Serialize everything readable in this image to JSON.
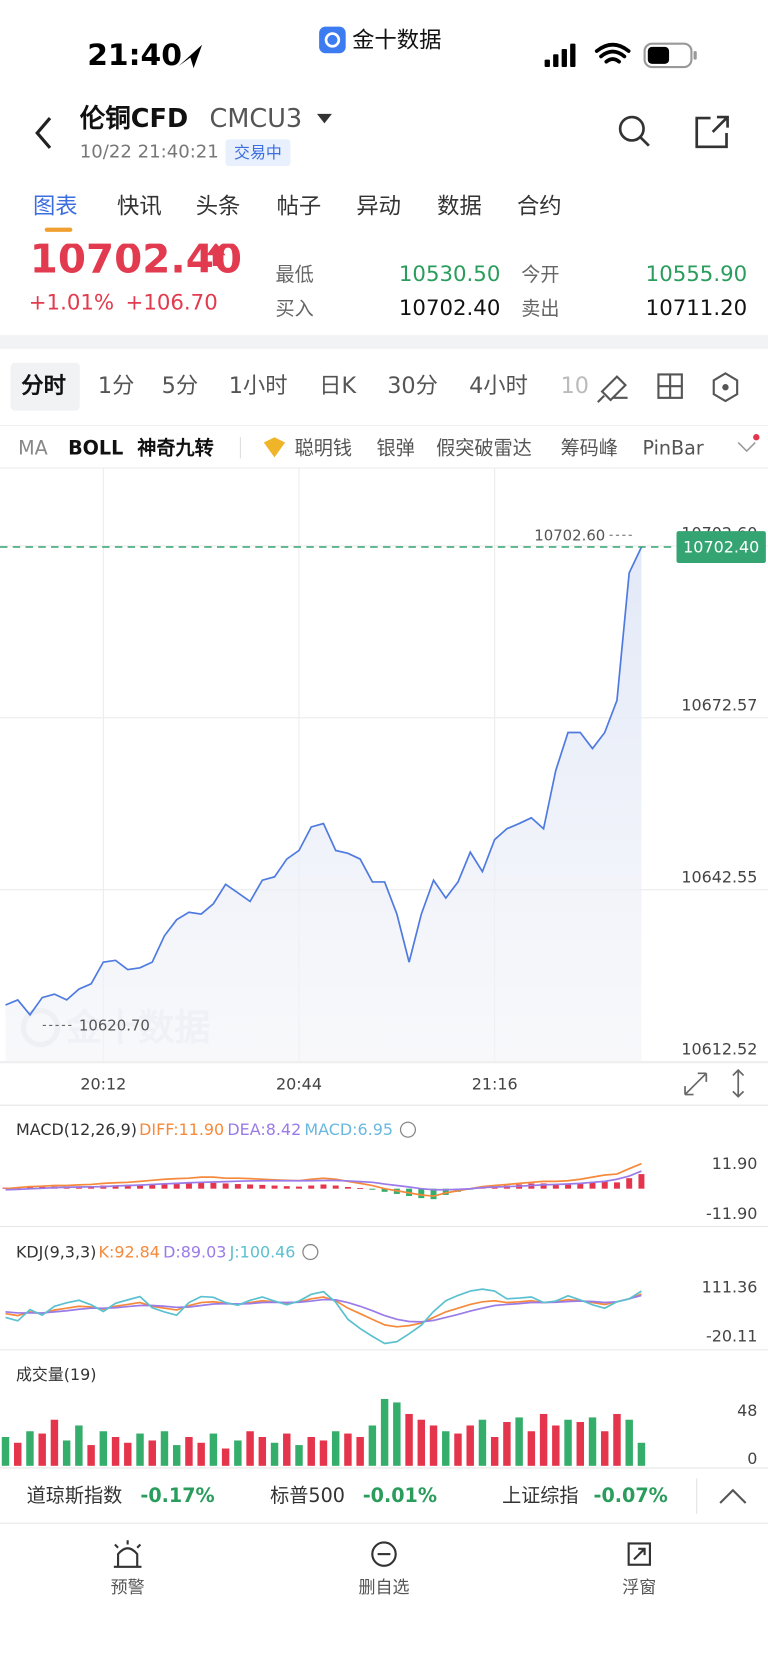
{
  "status": {
    "time": "21:40",
    "app": "金十数据"
  },
  "header": {
    "name": "伦铜CFD",
    "code": "CMCU3",
    "datetime": "10/22 21:40:21",
    "state": "交易中"
  },
  "tabs": [
    "图表",
    "快讯",
    "头条",
    "帖子",
    "异动",
    "数据",
    "合约"
  ],
  "quote": {
    "price": "10702.40",
    "change_pct": "+1.01%",
    "change": "+106.70",
    "rows": [
      [
        "最低",
        "10530.50",
        "今开",
        "10555.90"
      ],
      [
        "买入",
        "10702.40",
        "卖出",
        "10711.20"
      ]
    ]
  },
  "periods": [
    "分时",
    "1分",
    "5分",
    "1小时",
    "日K",
    "30分",
    "4小时",
    "10"
  ],
  "indicators": [
    "MA",
    "BOLL",
    "神奇九转",
    "聪明钱",
    "银弹",
    "假突破雷达",
    "筹码峰",
    "PinBar"
  ],
  "chart_data": [
    {
      "type": "line",
      "color": "#4f7be0",
      "grid": true,
      "watermark": "金十数据",
      "xlim": [
        1195.1,
        1320.7
      ],
      "ylim": [
        10612.52,
        10716.2
      ],
      "xticks": [
        {
          "value": 1212,
          "label": "20:12"
        },
        {
          "value": 1244,
          "label": "20:44"
        },
        {
          "value": 1276,
          "label": "21:16"
        }
      ],
      "yticks": [
        10612.52,
        10642.55,
        10672.57,
        {
          "value": 10702.6,
          "label": "10702.60"
        }
      ],
      "x": [
        1196,
        1198,
        1200,
        1202,
        1204,
        1206,
        1208,
        1210,
        1212,
        1214,
        1216,
        1218,
        1220,
        1222,
        1224,
        1226,
        1228,
        1230,
        1232,
        1234,
        1236,
        1238,
        1240,
        1242,
        1244,
        1246,
        1248,
        1250,
        1252,
        1254,
        1256,
        1258,
        1260,
        1262,
        1264,
        1266,
        1268,
        1270,
        1272,
        1274,
        1276,
        1278,
        1280,
        1282,
        1284,
        1286,
        1288,
        1290,
        1292,
        1294,
        1296,
        1298,
        1300
      ],
      "values": [
        10622.4,
        10623.3,
        10620.7,
        10623.7,
        10624.3,
        10623.3,
        10625.2,
        10626.1,
        10629.9,
        10630.2,
        10628.6,
        10628.9,
        10629.9,
        10634.5,
        10637.3,
        10638.6,
        10638.3,
        10640.1,
        10643.5,
        10642.0,
        10640.5,
        10644.2,
        10644.8,
        10647.9,
        10649.4,
        10653.5,
        10654.1,
        10649.4,
        10648.9,
        10647.9,
        10643.9,
        10643.9,
        10638.3,
        10629.9,
        10638.3,
        10644.2,
        10641.1,
        10643.9,
        10649.1,
        10645.7,
        10651.3,
        10653.2,
        10654.1,
        10655.1,
        10653.2,
        10663.4,
        10670.0,
        10670.0,
        10667.2,
        10670.0,
        10675.6,
        10697.9,
        10702.4
      ],
      "current": {
        "value": 10702.4,
        "label": "10702.40",
        "color": "#34a472"
      },
      "max": {
        "value": 10702.6,
        "label": "10702.60"
      },
      "min": {
        "value": 10620.7,
        "label": "10620.70"
      }
    },
    {
      "type": "combo",
      "title": "MACD(12,26,9)",
      "grid": false,
      "xlim": [
        1195.1,
        1320.7
      ],
      "ylim": [
        -16.5,
        19
      ],
      "yticks": [
        {
          "value": 11.9,
          "label": "11.90"
        },
        {
          "value": -11.9,
          "label": "-11.90"
        }
      ],
      "x": [
        1196,
        1198,
        1200,
        1202,
        1204,
        1206,
        1208,
        1210,
        1212,
        1214,
        1216,
        1218,
        1220,
        1222,
        1224,
        1226,
        1228,
        1230,
        1232,
        1234,
        1236,
        1238,
        1240,
        1242,
        1244,
        1246,
        1248,
        1250,
        1252,
        1254,
        1256,
        1258,
        1260,
        1262,
        1264,
        1266,
        1268,
        1270,
        1272,
        1274,
        1276,
        1278,
        1280,
        1282,
        1284,
        1286,
        1288,
        1290,
        1292,
        1294,
        1296,
        1298,
        1300
      ],
      "series": [
        {
          "name": "DIFF:11.90",
          "color": "#f58a3c",
          "values": [
            0,
            0.5,
            1,
            1.2,
            1.5,
            1.5,
            1.8,
            2,
            2.5,
            2.8,
            3,
            3.5,
            4,
            4.5,
            4.8,
            5,
            5.5,
            5.5,
            5,
            5,
            4.8,
            4.5,
            4.2,
            4,
            3.8,
            4.5,
            5,
            4.5,
            3.5,
            2.5,
            1.5,
            0,
            -1,
            -2,
            -3,
            -3.5,
            -2,
            -1,
            0,
            1,
            1.5,
            2,
            2.5,
            3,
            3.5,
            3.5,
            3.8,
            4.5,
            5.5,
            6.5,
            7,
            9.5,
            11.9
          ]
        },
        {
          "name": "DEA:8.42",
          "color": "#9a7be8",
          "values": [
            -0.5,
            -0.3,
            0,
            0.2,
            0.5,
            0.7,
            0.8,
            0.9,
            1,
            1.3,
            1.5,
            1.7,
            2,
            2.3,
            2.5,
            2.8,
            3,
            3.2,
            3.4,
            3.6,
            3.7,
            3.8,
            3.8,
            3.8,
            3.8,
            3.8,
            3.9,
            3.9,
            3.7,
            3.4,
            3,
            2.2,
            1.5,
            0.8,
            0,
            -0.5,
            -0.5,
            -0.3,
            0,
            0.5,
            0.8,
            1,
            1.2,
            1.5,
            1.8,
            2,
            2.2,
            2.5,
            3,
            3.5,
            4.5,
            6,
            8.42
          ]
        }
      ],
      "bars": {
        "name": "MACD:6.95",
        "color": "#6ab8e0",
        "up_color": "#e5354c",
        "down_color": "#35ae6b",
        "values": [
          0.5,
          0.8,
          1,
          1.2,
          1,
          0.8,
          1,
          1.2,
          1.5,
          1.5,
          1.8,
          2,
          2.2,
          2.5,
          2.5,
          2.8,
          3,
          2.8,
          2.5,
          2.2,
          2,
          1.8,
          1.5,
          1.2,
          1,
          1.5,
          2,
          1.5,
          0.8,
          0.3,
          -0.5,
          -1.5,
          -2.5,
          -3.5,
          -4.5,
          -5,
          -3,
          -1.5,
          -0.5,
          0.5,
          1,
          1.5,
          2,
          2.5,
          2.5,
          2.2,
          2,
          2.5,
          3,
          3.5,
          3,
          5,
          6.95
        ]
      }
    },
    {
      "type": "line",
      "title": "KDJ(9,3,3)",
      "grid": false,
      "xlim": [
        1195.1,
        1320.7
      ],
      "ylim": [
        -50,
        160
      ],
      "yticks": [
        111.36,
        -20.11
      ],
      "x": [
        1196,
        1198,
        1200,
        1202,
        1204,
        1206,
        1208,
        1210,
        1212,
        1214,
        1216,
        1218,
        1220,
        1222,
        1224,
        1226,
        1228,
        1230,
        1232,
        1234,
        1236,
        1238,
        1240,
        1242,
        1244,
        1246,
        1248,
        1250,
        1252,
        1254,
        1256,
        1258,
        1260,
        1262,
        1264,
        1266,
        1268,
        1270,
        1272,
        1274,
        1276,
        1278,
        1280,
        1282,
        1284,
        1286,
        1288,
        1290,
        1292,
        1294,
        1296,
        1298,
        1300
      ],
      "series": [
        {
          "name": "K:92.84",
          "color": "#f58a3c",
          "values": [
            40,
            35,
            45,
            40,
            50,
            55,
            60,
            58,
            52,
            60,
            65,
            70,
            60,
            55,
            50,
            62,
            70,
            72,
            68,
            65,
            70,
            75,
            72,
            68,
            72,
            80,
            85,
            75,
            55,
            40,
            25,
            10,
            5,
            8,
            15,
            30,
            45,
            55,
            65,
            72,
            75,
            70,
            72,
            75,
            70,
            72,
            78,
            75,
            70,
            65,
            72,
            80,
            92.84
          ]
        },
        {
          "name": "D:89.03",
          "color": "#9a7be8",
          "values": [
            45,
            42,
            42,
            42,
            45,
            48,
            52,
            55,
            55,
            56,
            59,
            62,
            62,
            60,
            57,
            58,
            62,
            66,
            67,
            66,
            67,
            70,
            71,
            70,
            71,
            74,
            78,
            77,
            70,
            60,
            48,
            35,
            25,
            19,
            18,
            22,
            30,
            38,
            47,
            55,
            62,
            65,
            67,
            70,
            70,
            71,
            73,
            74,
            73,
            70,
            72,
            80,
            89.03
          ]
        },
        {
          "name": "J:100.46",
          "color": "#5bc0d0",
          "values": [
            30,
            21,
            51,
            36,
            60,
            69,
            76,
            64,
            46,
            68,
            77,
            86,
            56,
            45,
            36,
            70,
            86,
            84,
            70,
            63,
            76,
            85,
            74,
            64,
            74,
            92,
            99,
            71,
            25,
            0,
            -21,
            -40,
            -35,
            -14,
            9,
            46,
            75,
            89,
            101,
            106,
            101,
            80,
            82,
            85,
            70,
            74,
            88,
            77,
            64,
            55,
            72,
            80,
            100.46
          ]
        }
      ]
    },
    {
      "type": "bar",
      "title": "成交量(19)",
      "grid": false,
      "xlim": [
        1195.1,
        1320.7
      ],
      "ylim": [
        0,
        60
      ],
      "yticks": [
        48,
        0
      ],
      "x": [
        1196,
        1198,
        1200,
        1202,
        1204,
        1206,
        1208,
        1210,
        1212,
        1214,
        1216,
        1218,
        1220,
        1222,
        1224,
        1226,
        1228,
        1230,
        1232,
        1234,
        1236,
        1238,
        1240,
        1242,
        1244,
        1246,
        1248,
        1250,
        1252,
        1254,
        1256,
        1258,
        1260,
        1262,
        1264,
        1266,
        1268,
        1270,
        1272,
        1274,
        1276,
        1278,
        1280,
        1282,
        1284,
        1286,
        1288,
        1290,
        1292,
        1294,
        1296,
        1298,
        1300
      ],
      "values": [
        25,
        20,
        30,
        28,
        40,
        22,
        35,
        18,
        30,
        25,
        20,
        28,
        22,
        30,
        18,
        25,
        20,
        28,
        15,
        22,
        30,
        25,
        20,
        28,
        18,
        25,
        22,
        30,
        28,
        25,
        35,
        58,
        55,
        45,
        40,
        35,
        30,
        28,
        35,
        40,
        25,
        38,
        42,
        30,
        45,
        35,
        40,
        38,
        42,
        30,
        45,
        40,
        20
      ],
      "colors": [
        "#35ae6b",
        "#e5354c",
        "#35ae6b",
        "#e5354c",
        "#e5354c",
        "#35ae6b",
        "#35ae6b",
        "#e5354c",
        "#35ae6b",
        "#e5354c",
        "#e5354c",
        "#35ae6b",
        "#e5354c",
        "#35ae6b",
        "#35ae6b",
        "#e5354c",
        "#e5354c",
        "#35ae6b",
        "#e5354c",
        "#35ae6b",
        "#e5354c",
        "#e5354c",
        "#35ae6b",
        "#e5354c",
        "#35ae6b",
        "#e5354c",
        "#e5354c",
        "#35ae6b",
        "#e5354c",
        "#e5354c",
        "#35ae6b",
        "#35ae6b",
        "#35ae6b",
        "#e5354c",
        "#e5354c",
        "#e5354c",
        "#35ae6b",
        "#e5354c",
        "#e5354c",
        "#35ae6b",
        "#e5354c",
        "#e5354c",
        "#35ae6b",
        "#e5354c",
        "#e5354c",
        "#e5354c",
        "#35ae6b",
        "#e5354c",
        "#35ae6b",
        "#e5354c",
        "#e5354c",
        "#35ae6b",
        "#35ae6b"
      ]
    }
  ],
  "tickers": [
    {
      "name": "道琼斯指数",
      "change": "-0.17%"
    },
    {
      "name": "标普500",
      "change": "-0.01%"
    },
    {
      "name": "上证综指",
      "change": "-0.07%"
    }
  ],
  "nav": [
    "预警",
    "删自选",
    "浮窗"
  ]
}
